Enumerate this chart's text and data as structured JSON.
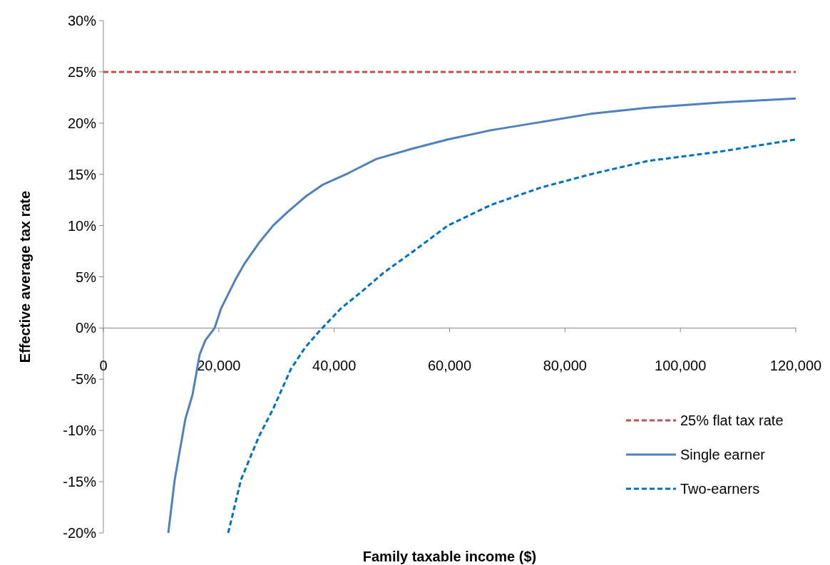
{
  "chart_data": {
    "type": "line",
    "xlabel": "Family taxable income ($)",
    "ylabel": "Effective average tax rate",
    "xlim": [
      0,
      120000
    ],
    "ylim": [
      -20,
      30
    ],
    "xticks": [
      0,
      {
        "value": 20000,
        "label": "20,000"
      },
      {
        "value": 40000,
        "label": "40,000"
      },
      {
        "value": 60000,
        "label": "60,000"
      },
      {
        "value": 80000,
        "label": "80,000"
      },
      {
        "value": 100000,
        "label": "100,000"
      },
      {
        "value": 120000,
        "label": "120,000"
      }
    ],
    "yticks": [
      {
        "value": -20,
        "label": "-20%"
      },
      {
        "value": -15,
        "label": "-15%"
      },
      {
        "value": -10,
        "label": "-10%"
      },
      {
        "value": -5,
        "label": "-5%"
      },
      {
        "value": 0,
        "label": "0%"
      },
      {
        "value": 5,
        "label": "5%"
      },
      {
        "value": 10,
        "label": "10%"
      },
      {
        "value": 15,
        "label": "15%"
      },
      {
        "value": 20,
        "label": "20%"
      },
      {
        "value": 25,
        "label": "25%"
      },
      {
        "value": 30,
        "label": "30%"
      }
    ],
    "grid": false,
    "legend": "bottom right",
    "marker": "none",
    "series": [
      {
        "name": "25% flat tax rate",
        "color": "#c0504d",
        "line_style": "dashed",
        "x": [
          0,
          120000
        ],
        "values": [
          25,
          25
        ]
      },
      {
        "name": "Single earner",
        "color": "#4f81bd",
        "line_style": "solid",
        "x": [
          11250,
          12360,
          14200,
          15450,
          16680,
          17670,
          19280,
          20390,
          21630,
          22860,
          24470,
          26940,
          29410,
          31880,
          34970,
          38060,
          42390,
          47330,
          53510,
          59690,
          67110,
          75760,
          84410,
          94290,
          106650,
          120000
        ],
        "values": [
          -20,
          -14.8,
          -8.9,
          -6.5,
          -2.6,
          -1.2,
          0,
          1.9,
          3.3,
          4.7,
          6.3,
          8.3,
          10,
          11.3,
          12.8,
          14,
          15.1,
          16.5,
          17.5,
          18.4,
          19.3,
          20.1,
          20.9,
          21.5,
          22,
          22.4
        ]
      },
      {
        "name": "Two-earners",
        "color": "#0070c0",
        "line_style": "dashed",
        "x": [
          21630,
          23850,
          26940,
          29410,
          32500,
          34970,
          37440,
          41150,
          44860,
          48570,
          53510,
          59690,
          67110,
          75760,
          84410,
          94290,
          106650,
          120000
        ],
        "values": [
          -20,
          -14.8,
          -10.6,
          -7.9,
          -4,
          -1.9,
          -0.3,
          1.9,
          3.6,
          5.4,
          7.4,
          10,
          12,
          13.7,
          15,
          16.3,
          17.2,
          18.4
        ]
      }
    ]
  }
}
